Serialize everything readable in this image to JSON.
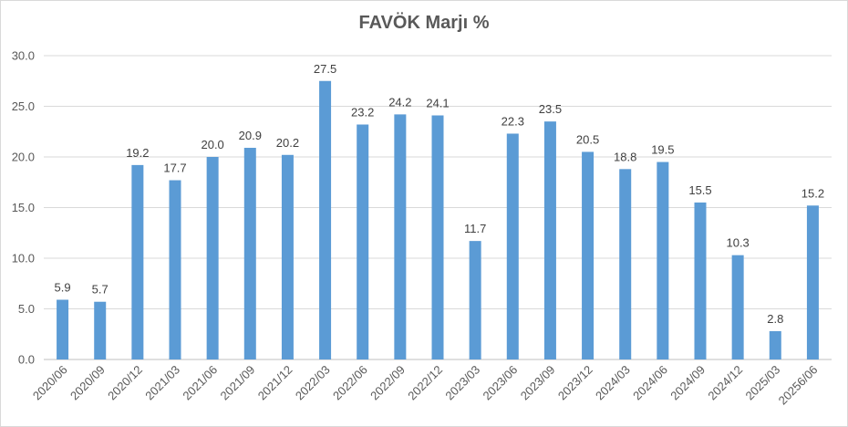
{
  "chart_data": {
    "type": "bar",
    "title": "FAVÖK Marjı %",
    "xlabel": "",
    "ylabel": "",
    "ylim": [
      0,
      30
    ],
    "yticks": [
      "0.0",
      "5.0",
      "10.0",
      "15.0",
      "20.0",
      "25.0",
      "30.0"
    ],
    "grid": true,
    "bar_color": "#5b9bd5",
    "categories": [
      "2020/06",
      "2020/09",
      "2020/12",
      "2021/03",
      "2021/06",
      "2021/09",
      "2021/12",
      "2022/03",
      "2022/06",
      "2022/09",
      "2022/12",
      "2023/03",
      "2023/06",
      "2023/09",
      "2023/12",
      "2024/03",
      "2024/06",
      "2024/09",
      "2024/12",
      "2025/03",
      "20256/06"
    ],
    "values": [
      5.9,
      5.7,
      19.2,
      17.7,
      20.0,
      20.9,
      20.2,
      27.5,
      23.2,
      24.2,
      24.1,
      11.7,
      22.3,
      23.5,
      20.5,
      18.8,
      19.5,
      15.5,
      10.3,
      2.8,
      15.2
    ],
    "data_labels": [
      "5.9",
      "5.7",
      "19.2",
      "17.7",
      "20.0",
      "20.9",
      "20.2",
      "27.5",
      "23.2",
      "24.2",
      "24.1",
      "11.7",
      "22.3",
      "23.5",
      "20.5",
      "18.8",
      "19.5",
      "15.5",
      "10.3",
      "2.8",
      "15.2"
    ]
  }
}
